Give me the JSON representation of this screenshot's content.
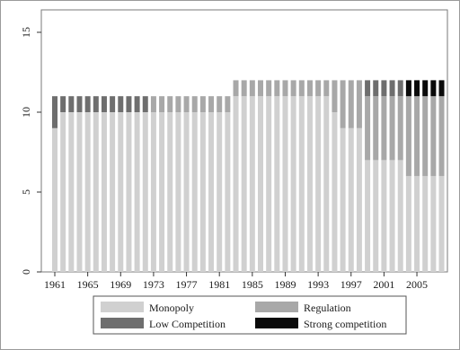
{
  "chart_data": {
    "type": "bar",
    "stacked": true,
    "title": "",
    "xlabel": "",
    "ylabel": "",
    "ylim": [
      0,
      15
    ],
    "yticks": [
      0,
      5,
      10,
      15
    ],
    "xtick_labels": [
      "1961",
      "1965",
      "1969",
      "1973",
      "1977",
      "1981",
      "1985",
      "1989",
      "1993",
      "1997",
      "2001",
      "2005"
    ],
    "grid": false,
    "legend_position": "bottom",
    "categories": [
      "1961",
      "1962",
      "1963",
      "1964",
      "1965",
      "1966",
      "1967",
      "1968",
      "1969",
      "1970",
      "1971",
      "1972",
      "1973",
      "1974",
      "1975",
      "1976",
      "1977",
      "1978",
      "1979",
      "1980",
      "1981",
      "1982",
      "1983",
      "1984",
      "1985",
      "1986",
      "1987",
      "1988",
      "1989",
      "1990",
      "1991",
      "1992",
      "1993",
      "1994",
      "1995",
      "1996",
      "1997",
      "1998",
      "1999",
      "2000",
      "2001",
      "2002",
      "2003",
      "2004",
      "2005",
      "2006",
      "2007",
      "2008"
    ],
    "series": [
      {
        "name": "Monopoly",
        "color": "#d0d0d0",
        "values": [
          9,
          10,
          10,
          10,
          10,
          10,
          10,
          10,
          10,
          10,
          10,
          10,
          10,
          10,
          10,
          10,
          10,
          10,
          10,
          10,
          10,
          10,
          11,
          11,
          11,
          11,
          11,
          11,
          11,
          11,
          11,
          11,
          11,
          11,
          10,
          9,
          9,
          9,
          7,
          7,
          7,
          7,
          7,
          6,
          6,
          6,
          6,
          6
        ]
      },
      {
        "name": "Regulation",
        "color": "#a8a8a8",
        "values": [
          0,
          0,
          0,
          0,
          0,
          0,
          0,
          0,
          0,
          0,
          0,
          0,
          1,
          1,
          1,
          1,
          1,
          1,
          1,
          1,
          1,
          1,
          1,
          1,
          1,
          1,
          1,
          1,
          1,
          1,
          1,
          1,
          1,
          1,
          2,
          3,
          3,
          3,
          4,
          4,
          4,
          4,
          4,
          5,
          5,
          5,
          5,
          5
        ]
      },
      {
        "name": "Low Competition",
        "color": "#6e6e6e",
        "values": [
          2,
          1,
          1,
          1,
          1,
          1,
          1,
          1,
          1,
          1,
          1,
          1,
          0,
          0,
          0,
          0,
          0,
          0,
          0,
          0,
          0,
          0,
          0,
          0,
          0,
          0,
          0,
          0,
          0,
          0,
          0,
          0,
          0,
          0,
          0,
          0,
          0,
          0,
          1,
          1,
          1,
          1,
          1,
          0,
          0,
          0,
          0,
          0
        ]
      },
      {
        "name": "Strong competition",
        "color": "#0a0a0a",
        "values": [
          0,
          0,
          0,
          0,
          0,
          0,
          0,
          0,
          0,
          0,
          0,
          0,
          0,
          0,
          0,
          0,
          0,
          0,
          0,
          0,
          0,
          0,
          0,
          0,
          0,
          0,
          0,
          0,
          0,
          0,
          0,
          0,
          0,
          0,
          0,
          0,
          0,
          0,
          0,
          0,
          0,
          0,
          0,
          1,
          1,
          1,
          1,
          1
        ]
      }
    ]
  }
}
